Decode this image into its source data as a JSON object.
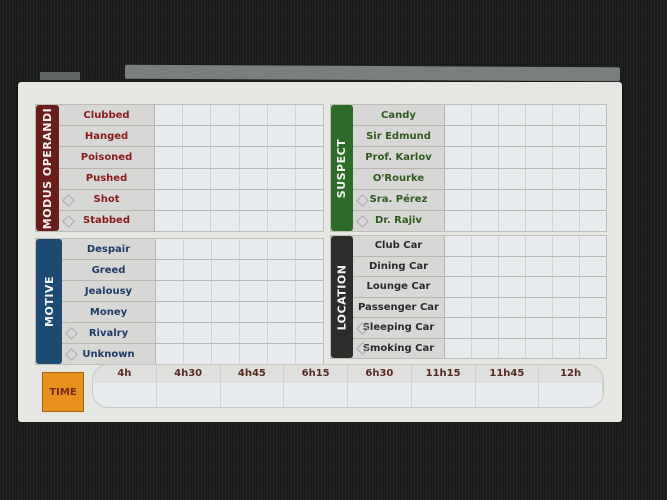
{
  "sheet": {
    "sections": [
      {
        "id": "modus",
        "title": "MODUS OPERANDI",
        "color": "#6a1e1a",
        "text_color": "#8a1a1a",
        "items": [
          {
            "label": "Clubbed",
            "marker": false
          },
          {
            "label": "Hanged",
            "marker": false
          },
          {
            "label": "Poisoned",
            "marker": false
          },
          {
            "label": "Pushed",
            "marker": false
          },
          {
            "label": "Shot",
            "marker": true
          },
          {
            "label": "Stabbed",
            "marker": true
          }
        ]
      },
      {
        "id": "suspect",
        "title": "SUSPECT",
        "color": "#2e6a2a",
        "text_color": "#2f5a1e",
        "items": [
          {
            "label": "Candy",
            "marker": false
          },
          {
            "label": "Sir Edmund",
            "marker": false
          },
          {
            "label": "Prof. Karlov",
            "marker": false
          },
          {
            "label": "O'Rourke",
            "marker": false
          },
          {
            "label": "Sra. Pérez",
            "marker": true
          },
          {
            "label": "Dr. Rajiv",
            "marker": true
          }
        ]
      },
      {
        "id": "motive",
        "title": "MOTIVE",
        "color": "#1e4a72",
        "text_color": "#1e3a6a",
        "items": [
          {
            "label": "Despair",
            "marker": false
          },
          {
            "label": "Greed",
            "marker": false
          },
          {
            "label": "Jealousy",
            "marker": false
          },
          {
            "label": "Money",
            "marker": false
          },
          {
            "label": "Rivalry",
            "marker": true
          },
          {
            "label": "Unknown",
            "marker": true
          }
        ]
      },
      {
        "id": "location",
        "title": "LOCATION",
        "color": "#2c2c2a",
        "text_color": "#2a2a2a",
        "items": [
          {
            "label": "Club Car",
            "marker": false
          },
          {
            "label": "Dining Car",
            "marker": false
          },
          {
            "label": "Lounge Car",
            "marker": false
          },
          {
            "label": "Passenger Car",
            "marker": false
          },
          {
            "label": "Sleeping Car",
            "marker": true
          },
          {
            "label": "Smoking Car",
            "marker": true
          }
        ]
      }
    ],
    "time": {
      "title": "TIME",
      "slots": [
        "4h",
        "4h30",
        "4h45",
        "6h15",
        "6h30",
        "11h15",
        "11h45",
        "12h"
      ]
    }
  }
}
